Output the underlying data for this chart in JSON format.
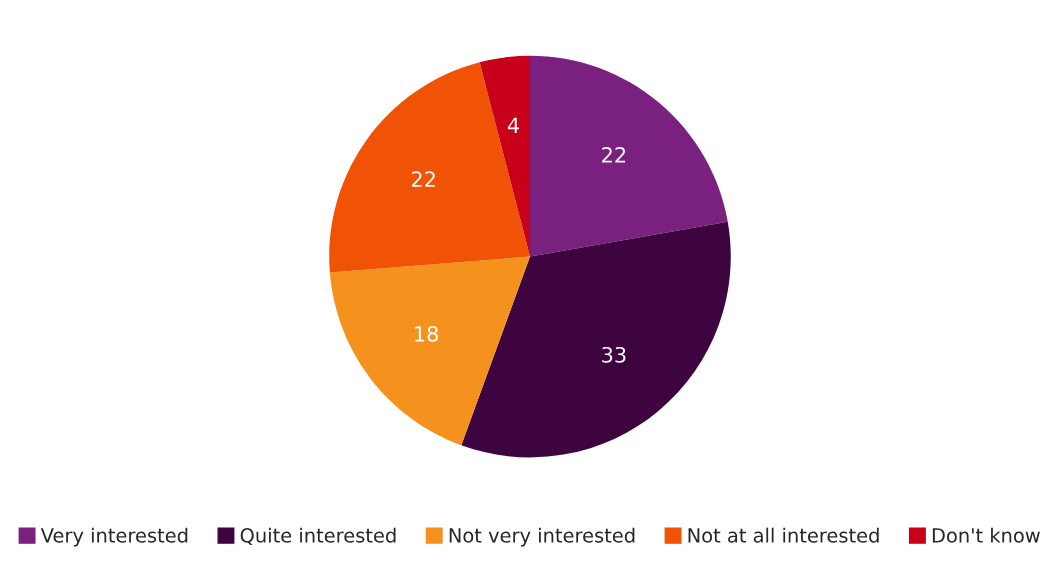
{
  "chart_data": {
    "type": "pie",
    "categories": [
      "Very interested",
      "Quite interested",
      "Not very interested",
      "Not at all interested",
      "Don't know"
    ],
    "values": [
      22,
      33,
      18,
      22,
      4
    ],
    "colors": [
      "#7a2180",
      "#3d0440",
      "#f5921e",
      "#f05206",
      "#c8001a"
    ],
    "data_labels": true,
    "legend": "bottom"
  }
}
